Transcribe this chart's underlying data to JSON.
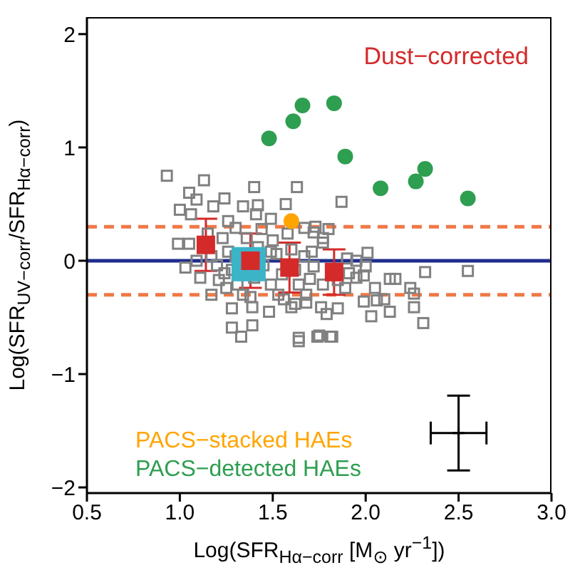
{
  "chart_data": {
    "type": "scatter",
    "xlabel": "Log(SFR$_{Hα−corr}$ [M$_{⊙}$ yr$^{−1}$])",
    "ylabel": "Log(SFR$_{UV−corr}$/SFR$_{Hα−corr}$)",
    "xlim": [
      0.5,
      3.0
    ],
    "ylim": [
      -2.05,
      2.15
    ],
    "xticks": [
      0.5,
      {
        "value": 1,
        "label": "1.0"
      },
      1.5,
      {
        "value": 2,
        "label": "2.0"
      },
      2.5,
      {
        "value": 3,
        "label": "3.0"
      }
    ],
    "yticks": [
      {
        "value": -2,
        "label": "−2"
      },
      {
        "value": -1,
        "label": "−1"
      },
      0,
      1,
      2
    ],
    "grid": false,
    "legend": "bottom left",
    "annotations": [
      "Dust−corrected"
    ],
    "ref_lines": [
      {
        "axis": "y",
        "value": 0,
        "color": "#1f2d8c",
        "line_style": "solid"
      },
      {
        "axis": "y",
        "value": 0.3,
        "color": "#f07846",
        "line_style": "dashed"
      },
      {
        "axis": "y",
        "value": -0.3,
        "color": "#f07846",
        "line_style": "dashed"
      }
    ],
    "series": [
      {
        "marker": "square",
        "color": "#808080",
        "x": [
          0.93,
          1.13,
          1.05,
          1.4,
          1.63,
          1.09,
          1.24,
          1.0,
          1.06,
          1.18,
          1.34,
          1.42,
          1.57,
          1.26,
          1.41,
          1.49,
          1.67,
          0.99,
          1.05,
          1.23,
          1.3,
          1.72,
          1.77,
          1.03,
          1.09,
          1.17,
          1.26,
          1.49,
          1.67,
          1.72,
          1.11,
          1.21,
          1.31,
          1.49,
          1.64,
          1.77,
          1.17,
          1.34,
          1.53,
          1.68,
          1.28,
          1.39,
          1.48,
          1.62,
          1.28,
          1.39,
          1.33,
          1.64,
          1.75,
          1.82,
          1.76,
          1.85,
          1.87,
          1.73,
          1.8,
          1.77,
          1.71,
          1.95,
          2.0,
          2.01,
          2.32,
          2.55,
          2.13,
          2.16,
          2.24,
          2.26,
          2.13,
          2.26,
          2.03,
          2.31,
          1.99,
          2.06,
          2.1,
          1.79,
          1.68,
          1.6,
          1.64,
          1.74,
          1.81,
          2.05,
          1.89,
          1.95,
          1.91,
          1.85,
          1.99,
          1.9,
          1.3,
          1.24,
          1.42,
          1.45,
          1.52,
          1.55,
          1.4,
          1.28,
          1.6,
          1.5,
          1.36,
          1.2,
          1.15,
          1.62,
          1.7,
          1.58,
          1.44,
          1.25,
          1.38,
          1.56
        ],
        "values": [
          0.75,
          0.71,
          0.6,
          0.65,
          0.65,
          0.54,
          0.55,
          0.45,
          0.41,
          0.48,
          0.48,
          0.49,
          0.5,
          0.35,
          0.41,
          0.37,
          0.29,
          0.15,
          0.15,
          0.2,
          0.29,
          0.25,
          0.2,
          -0.06,
          0,
          0.04,
          0.08,
          0.08,
          0.04,
          -0.05,
          -0.15,
          -0.17,
          -0.21,
          -0.21,
          -0.21,
          -0.21,
          -0.3,
          -0.3,
          -0.3,
          -0.3,
          -0.42,
          -0.41,
          -0.45,
          -0.38,
          -0.59,
          -0.57,
          -0.67,
          -0.68,
          -0.66,
          -0.67,
          -0.41,
          -0.42,
          0.52,
          0.3,
          0.28,
          0.16,
          0.08,
          0,
          -0.05,
          0.07,
          -0.1,
          -0.09,
          -0.16,
          -0.16,
          -0.24,
          -0.29,
          -0.45,
          -0.41,
          -0.49,
          -0.55,
          -0.36,
          -0.35,
          -0.34,
          -0.47,
          -0.37,
          -0.41,
          -0.71,
          -0.67,
          -0.67,
          -0.24,
          -0.24,
          -0.15,
          -0.11,
          -0.17,
          -0.13,
          0.02,
          0.04,
          -0.11,
          0.12,
          -0.04,
          0.06,
          -0.12,
          -0.15,
          -0.08,
          0.1,
          0.18,
          0.2,
          -0.04,
          0.24,
          -0.08,
          -0.16,
          0.24,
          0.28,
          -0.24,
          -0.32,
          -0.34
        ]
      },
      {
        "type": "bubble",
        "marker": "square",
        "color": "#3cb4c8",
        "x": [
          1.37
        ],
        "values": [
          -0.03
        ],
        "sizes": [
          1
        ],
        "errors": [
          0.14
        ]
      },
      {
        "marker": "square",
        "color": "#d42a2a",
        "x": [
          1.14,
          1.38,
          1.59,
          1.83
        ],
        "values": [
          0.14,
          0,
          -0.06,
          -0.1
        ],
        "errors": [
          0.23,
          0.24,
          0.22,
          0.2
        ]
      },
      {
        "marker": "circle",
        "name": "PACS−stacked HAEs",
        "color": "#ffa500",
        "x": [
          1.6
        ],
        "values": [
          0.35
        ]
      },
      {
        "marker": "circle",
        "name": "PACS−detected HAEs",
        "color": "#2e9e50",
        "x": [
          1.48,
          1.61,
          1.66,
          1.83,
          1.89,
          2.08,
          2.27,
          2.32,
          2.55
        ],
        "values": [
          1.08,
          1.23,
          1.37,
          1.39,
          0.92,
          0.64,
          0.7,
          0.81,
          0.55
        ]
      },
      {
        "marker": "cross",
        "color": "#000000",
        "x": [
          2.5
        ],
        "values": [
          -1.52
        ],
        "errors": [
          0.33
        ],
        "xerrors": [
          0.15
        ]
      }
    ]
  }
}
